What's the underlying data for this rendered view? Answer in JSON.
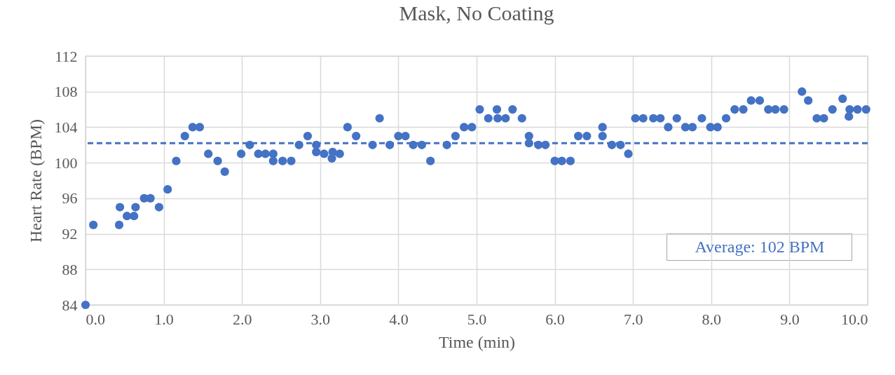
{
  "chart_data": {
    "type": "scatter",
    "title": "Mask, No Coating",
    "xlabel": "Time (min)",
    "ylabel": "Heart Rate (BPM)",
    "x": [
      0.0,
      0.1,
      0.43,
      0.44,
      0.53,
      0.62,
      0.64,
      0.75,
      0.83,
      0.94,
      1.05,
      1.16,
      1.27,
      1.37,
      1.46,
      1.57,
      1.69,
      1.78,
      1.99,
      2.1,
      2.21,
      2.3,
      2.4,
      2.4,
      2.52,
      2.63,
      2.73,
      2.84,
      2.95,
      2.95,
      3.05,
      3.15,
      3.16,
      3.25,
      3.35,
      3.46,
      3.67,
      3.76,
      3.89,
      4.0,
      4.09,
      4.19,
      4.3,
      4.41,
      4.62,
      4.73,
      4.84,
      4.94,
      5.04,
      5.15,
      5.26,
      5.27,
      5.37,
      5.46,
      5.58,
      5.67,
      5.67,
      5.79,
      5.88,
      6.0,
      6.09,
      6.2,
      6.3,
      6.41,
      6.61,
      6.61,
      6.73,
      6.84,
      6.94,
      7.03,
      7.13,
      7.26,
      7.35,
      7.45,
      7.56,
      7.67,
      7.76,
      7.88,
      7.99,
      8.08,
      8.19,
      8.3,
      8.41,
      8.51,
      8.62,
      8.73,
      8.82,
      8.93,
      9.16,
      9.24,
      9.35,
      9.44,
      9.55,
      9.68,
      9.76,
      9.77,
      9.87,
      9.98
    ],
    "series": [
      {
        "color": "#4472c4",
        "values": [
          84,
          93,
          93,
          95,
          94,
          94,
          95,
          96,
          96,
          95,
          97,
          100.2,
          103,
          104,
          104,
          101,
          100.2,
          99,
          101,
          102,
          101,
          101,
          101,
          100.2,
          100.2,
          100.2,
          102,
          103,
          102,
          101.2,
          101,
          100.5,
          101.2,
          101,
          104,
          103,
          102,
          105,
          102,
          103,
          103,
          102,
          102,
          100.2,
          102,
          103,
          104,
          104,
          106,
          105,
          106,
          105,
          105,
          106,
          105,
          103,
          102.2,
          102,
          102,
          100.2,
          100.2,
          100.2,
          103,
          103,
          104,
          103,
          102,
          102,
          101,
          105,
          105,
          105,
          105,
          104,
          105,
          104,
          104,
          105,
          104,
          104,
          105,
          106,
          106,
          107,
          107,
          106,
          106,
          106,
          108,
          107,
          105,
          105,
          106,
          107.2,
          105.2,
          106,
          106,
          106
        ]
      }
    ],
    "xlim": [
      0,
      10
    ],
    "xticks": [
      {
        "value": 0,
        "label": "0.0"
      },
      {
        "value": 1,
        "label": "1.0"
      },
      {
        "value": 2,
        "label": "2.0"
      },
      {
        "value": 3,
        "label": "3.0"
      },
      {
        "value": 4,
        "label": "4.0"
      },
      {
        "value": 5,
        "label": "5.0"
      },
      {
        "value": 6,
        "label": "6.0"
      },
      {
        "value": 7,
        "label": "7.0"
      },
      {
        "value": 8,
        "label": "8.0"
      },
      {
        "value": 9,
        "label": "9.0"
      },
      {
        "value": 10,
        "label": "10.0"
      }
    ],
    "ylim": [
      84,
      112
    ],
    "yticks": [
      84,
      88,
      92,
      96,
      100,
      104,
      108,
      112
    ],
    "ref_lines": [
      {
        "axis": "y",
        "value": 102.2,
        "label": "Average: 102 BPM",
        "color": "#4472c4",
        "line_style": "dashed"
      }
    ],
    "grid": true,
    "marker": "circle"
  }
}
